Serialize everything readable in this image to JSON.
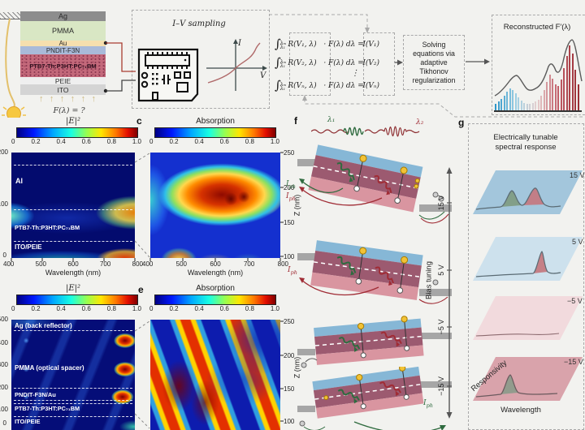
{
  "shared": {
    "colorbar_ticks": [
      "0",
      "0.2",
      "0.4",
      "0.6",
      "0.8",
      "1.0"
    ],
    "x_ticks": [
      "400",
      "500",
      "600",
      "700",
      "800"
    ],
    "xlabel": "Wavelength (nm)",
    "z_ticks": [
      "250",
      "200",
      "150",
      "100"
    ],
    "zlabel": "Z (nm)"
  },
  "panels": {
    "device": {
      "layers": [
        {
          "label": "Ag",
          "color": "#8d8d8d"
        },
        {
          "label": "PMMA",
          "color": "#d9e7c4"
        },
        {
          "label": "Au",
          "color": "#f6dfae"
        },
        {
          "label": "PNDIT-F3N",
          "color": "#a9bad9"
        },
        {
          "label": "PTB7-Th:P3HT:PC₇₁BM",
          "color": "#c4697b"
        },
        {
          "label": "PEIE",
          "color": "#efefef"
        },
        {
          "label": "ITO",
          "color": "#d4d4d4"
        }
      ],
      "incident_label": "F(λ) = ?"
    },
    "iv_box": {
      "title": "I–V sampling",
      "axis_y": "I",
      "axis_x": "V"
    },
    "equations": {
      "rows": [
        {
          "sign": "∫",
          "upper": "λₘ",
          "lower": "λ₁",
          "r_term": "R(V₁, λ)",
          "mid": "· F(λ) dλ =",
          "rhs": "I(V₁)"
        },
        {
          "sign": "∫",
          "upper": "λₘ",
          "lower": "λ₁",
          "r_term": "R(V₂, λ)",
          "mid": "· F(λ) dλ =",
          "rhs": "I(V₂)"
        },
        {
          "sign": "∫",
          "upper": "λₘ",
          "lower": "λ₁",
          "r_term": "R(Vₙ, λ)",
          "mid": "· F(λ) dλ =",
          "rhs": "I(Vₙ)"
        }
      ],
      "vdots": "⋮"
    },
    "solver": {
      "lines": [
        "Solving",
        "equations via",
        "adaptive",
        "Tikhonov",
        "regularization"
      ]
    },
    "reconstructed": {
      "title": "Reconstructed F′(λ)"
    },
    "panel_b": {
      "title": "|E|²",
      "y_ticks_clipped": [
        "200",
        "100",
        "0"
      ],
      "layers": [
        "Al",
        "PTB7-Th:P3HT:PC₇₁BM",
        "ITO/PEIE"
      ]
    },
    "panel_c": {
      "letter": "c",
      "title": "Absorption"
    },
    "panel_d": {
      "title": "|E|²",
      "y_ticks_clipped": [
        "500",
        "400",
        "300",
        "200",
        "100",
        "0"
      ],
      "layers": [
        "Ag (back reflector)",
        "PMMA (optical spacer)",
        "PNDIT-F3N/Au",
        "PTB7-Th:P3HT:PC₇₁BM",
        "ITO/PEIE"
      ]
    },
    "panel_e": {
      "letter": "e",
      "title": "Absorption"
    },
    "panel_f": {
      "letter": "f",
      "lambda1": "λ₁",
      "lambda2": "λ₂",
      "iph_sym": "I",
      "iph_sub": "ph",
      "bias_axis": {
        "label": "Bias tuning",
        "ticks": [
          "15 V",
          "5 V",
          "−5 V",
          "−15 V"
        ]
      }
    },
    "panel_g": {
      "letter": "g",
      "title_line1": "Electrically tunable",
      "title_line2": "spectral response",
      "bias_labels": [
        "15 V",
        "5 V",
        "−5 V",
        "−15 V"
      ],
      "xlabel": "Wavelength",
      "ylabel": "Responsivity"
    }
  },
  "chart_data": [
    {
      "id": "reconstructed_spectrum",
      "type": "bar",
      "title": "Reconstructed F′(λ)",
      "xlabel": "wavelength (increasing, unlabeled)",
      "ylabel": "F′(λ) (unlabeled)",
      "values": [
        0.1,
        0.13,
        0.17,
        0.22,
        0.27,
        0.32,
        0.3,
        0.25,
        0.19,
        0.14,
        0.11,
        0.1,
        0.1,
        0.11,
        0.13,
        0.16,
        0.22,
        0.3,
        0.42,
        0.52,
        0.46,
        0.38,
        0.36,
        0.45,
        0.62,
        0.8,
        0.95,
        0.83,
        0.6,
        0.38
      ],
      "bar_color_stops": [
        "#2f96c8",
        "#9fd0e4",
        "#e6cfcf",
        "#c2606a",
        "#9a2e35"
      ],
      "overlay_line": "grey envelope with peaks near x=0.27, 0.63 and 0.86 of span; tallest peak at right"
    },
    {
      "id": "panel_b_field_intensity",
      "type": "heatmap",
      "title": "|E|²",
      "xlabel": "Wavelength (nm)",
      "x_range": [
        400,
        800
      ],
      "ylabel": "Z (nm)",
      "y_range": [
        0,
        200
      ],
      "colorbar_range": [
        0,
        1
      ],
      "layers_top_to_bottom": [
        "Al",
        "PTB7-Th:P3HT:PC₇₁BM",
        "ITO/PEIE"
      ],
      "hotspots": [
        "|E|²≈0.8 lobe at ~760-800 nm inside active layer",
        "|E|²≈0.9 lobe at ~750 nm near ITO/PEIE bottom",
        "cyan lobe at 400 nm mid-stack",
        "teal band along bottom 500-650 nm"
      ]
    },
    {
      "id": "panel_c_absorption",
      "type": "heatmap",
      "title": "Absorption",
      "xlabel": "Wavelength (nm)",
      "x_range": [
        400,
        800
      ],
      "ylabel": "Z (nm)",
      "y_range": [
        100,
        250
      ],
      "colorbar_range": [
        0,
        1
      ],
      "hotspots": [
        "broad absorption ≈1.0 region 500-730 nm at Z≈150-220 nm",
        "secondary maxima at bottom edge near 500 nm",
        "cyan column at 400-430 nm"
      ]
    },
    {
      "id": "panel_d_field_intensity_thick_cavity",
      "type": "heatmap",
      "title": "|E|²",
      "xlabel": "Wavelength (nm)",
      "x_range": [
        400,
        800
      ],
      "ylabel": "Z (nm)",
      "y_range": [
        0,
        500
      ],
      "colorbar_range": [
        0,
        1
      ],
      "layers_top_to_bottom": [
        "Ag (back reflector)",
        "PMMA (optical spacer)",
        "PNDIT-F3N/Au",
        "PTB7-Th:P3HT:PC₇₁BM",
        "ITO/PEIE"
      ],
      "hotspots": [
        "three strong |E|² antinodes ≈1.0 at ~770 nm stacked in PMMA spacer",
        "weak dot column at ~450 nm",
        "diagonal interference fringes"
      ]
    },
    {
      "id": "panel_e_absorption_thick_cavity",
      "type": "heatmap",
      "title": "Absorption",
      "xlabel": "Wavelength (nm)",
      "x_range": [
        400,
        800
      ],
      "ylabel": "Z (nm)",
      "y_range": [
        100,
        250
      ],
      "colorbar_range": [
        0,
        1
      ],
      "hotspots": [
        "alternating diagonal high/low absorption fringes sweeping from short to long wavelength",
        "dark-red fringe cores near 500-560 nm at Z≈130-200 nm"
      ]
    },
    {
      "id": "panel_g_tunable_responsivity",
      "type": "line",
      "xlabel": "Wavelength",
      "ylabel": "Responsivity",
      "series": [
        {
          "bias": "15 V",
          "shape": "peak at λ₁ (green) and larger peak at λ₂ (red)"
        },
        {
          "bias": "5 V",
          "shape": "single sharp peak at λ₂ (red)"
        },
        {
          "bias": "−5 V",
          "shape": "nearly flat response"
        },
        {
          "bias": "−15 V",
          "shape": "single peak at λ₁ (green)"
        }
      ]
    }
  ]
}
